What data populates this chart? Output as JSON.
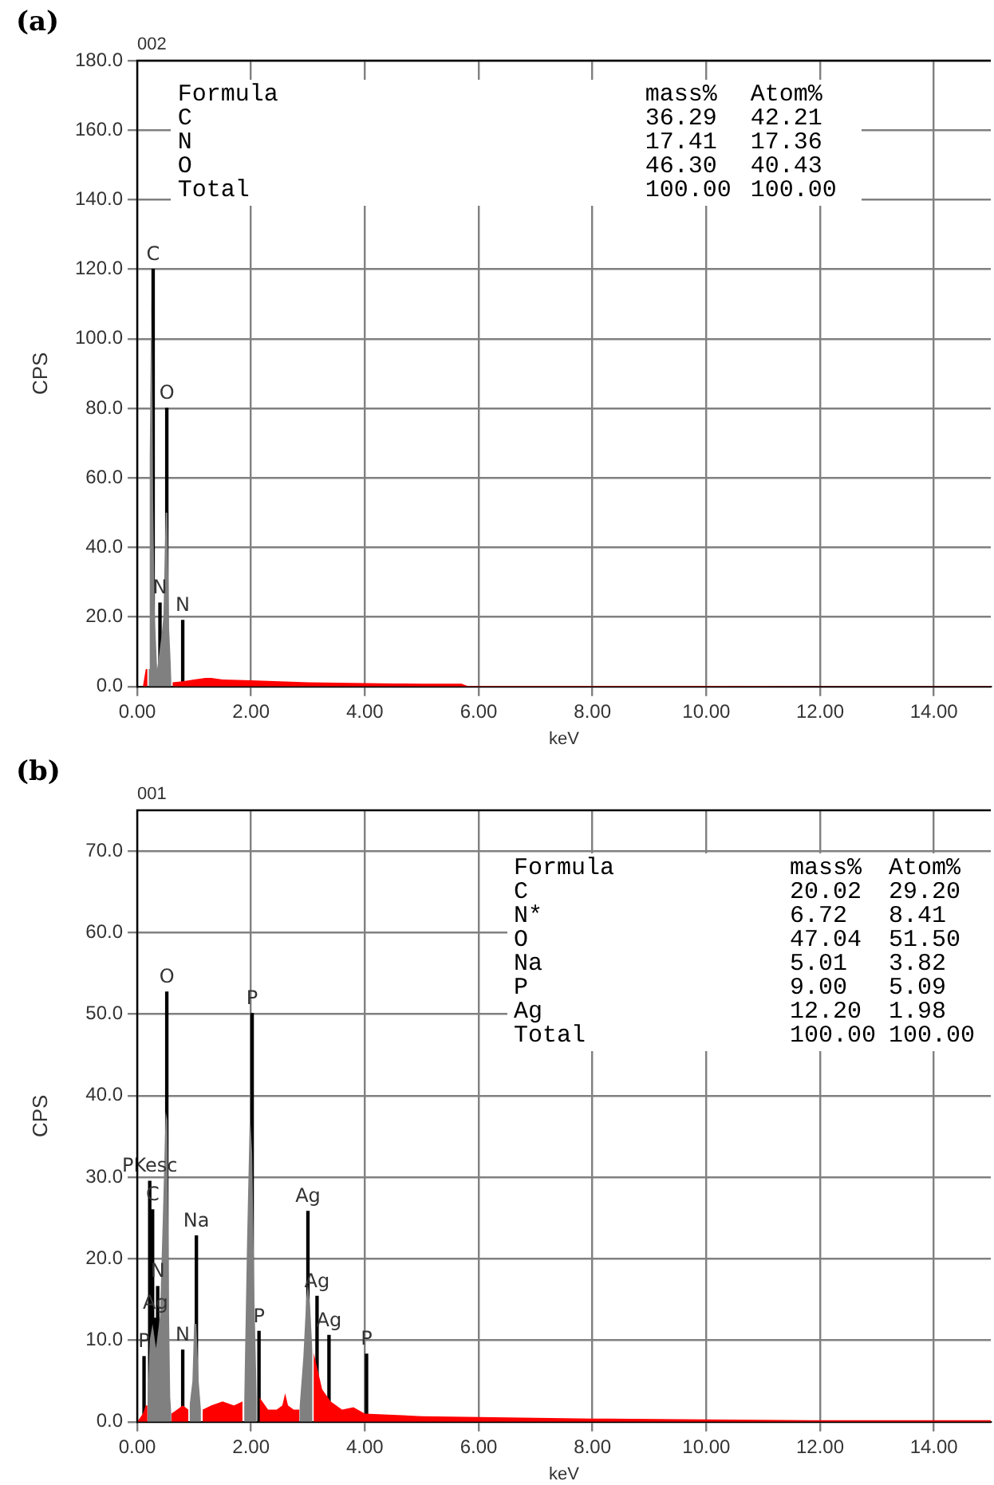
{
  "chart_data": [
    {
      "type": "area",
      "title": "(a)",
      "subtitle": "002",
      "xlabel": "keV",
      "ylabel": "CPS",
      "xlim": [
        0,
        15
      ],
      "ylim": [
        0,
        180
      ],
      "xticks": [
        {
          "value": 0,
          "label": "0.00"
        },
        {
          "value": 2,
          "label": "2.00"
        },
        {
          "value": 4,
          "label": "4.00"
        },
        {
          "value": 6,
          "label": "6.00"
        },
        {
          "value": 8,
          "label": "8.00"
        },
        {
          "value": 10,
          "label": "10.00"
        },
        {
          "value": 12,
          "label": "12.00"
        },
        {
          "value": 14,
          "label": "14.00"
        }
      ],
      "yticks": [
        {
          "value": 0,
          "label": "0.0"
        },
        {
          "value": 20,
          "label": "20.0"
        },
        {
          "value": 40,
          "label": "40.0"
        },
        {
          "value": 60,
          "label": "60.0"
        },
        {
          "value": 80,
          "label": "80.0"
        },
        {
          "value": 100,
          "label": "100.0"
        },
        {
          "value": 120,
          "label": "120.0"
        },
        {
          "value": 140,
          "label": "140.0"
        },
        {
          "value": 160,
          "label": "160.0"
        },
        {
          "value": 180,
          "label": "180.0"
        }
      ],
      "grid": true,
      "legend": false,
      "series": [
        {
          "color": "#ff0000",
          "x": [
            0,
            0.1,
            0.15,
            0.18,
            0.4,
            0.62,
            0.8,
            1.0,
            1.2,
            1.3,
            1.5,
            2.0,
            2.5,
            3.0,
            3.5,
            4.0,
            4.5,
            5.0,
            5.7,
            5.8,
            7,
            8,
            10,
            12,
            15
          ],
          "values": [
            0,
            0,
            5,
            5,
            null,
            1.2,
            1.5,
            2,
            2.5,
            2.5,
            2,
            1.8,
            1.5,
            1.2,
            1.1,
            1,
            0.9,
            0.8,
            0.8,
            0.2,
            0.2,
            0.2,
            0.2,
            0.1,
            0.1
          ]
        },
        {
          "color": "#808080",
          "x": [
            0.2,
            0.22,
            0.24,
            0.25,
            0.27,
            0.28,
            0.31,
            0.35,
            0.39,
            0.43,
            0.46,
            0.5,
            0.53,
            0.56,
            0.58,
            0.6
          ],
          "values": [
            5,
            66,
            100,
            112,
            80,
            53,
            20,
            5,
            10,
            15,
            20,
            50,
            50,
            17,
            10,
            2
          ]
        },
        {
          "type": "bar",
          "color": "#000000",
          "x": [
            0.28,
            0.4,
            0.52,
            0.8
          ],
          "values": [
            120,
            24,
            80,
            19
          ],
          "value_labels": [
            "C",
            "N",
            "O",
            "N"
          ]
        }
      ],
      "annotations": [
        "Formula mass% Atom%",
        "C 36.29 42.21",
        "N 17.41 17.36",
        "O 46.30 40.43",
        "Total 100.00 100.00"
      ]
    },
    {
      "type": "area",
      "title": "(b)",
      "subtitle": "001",
      "xlabel": "keV",
      "ylabel": "CPS",
      "xlim": [
        0,
        15
      ],
      "ylim": [
        0,
        75
      ],
      "xticks": [
        {
          "value": 0,
          "label": "0.00"
        },
        {
          "value": 2,
          "label": "2.00"
        },
        {
          "value": 4,
          "label": "4.00"
        },
        {
          "value": 6,
          "label": "6.00"
        },
        {
          "value": 8,
          "label": "8.00"
        },
        {
          "value": 10,
          "label": "10.00"
        },
        {
          "value": 12,
          "label": "12.00"
        },
        {
          "value": 14,
          "label": "14.00"
        }
      ],
      "yticks": [
        {
          "value": 0,
          "label": "0.0"
        },
        {
          "value": 10,
          "label": "10.0"
        },
        {
          "value": 20,
          "label": "20.0"
        },
        {
          "value": 30,
          "label": "30.0"
        },
        {
          "value": 40,
          "label": "40.0"
        },
        {
          "value": 50,
          "label": "50.0"
        },
        {
          "value": 60,
          "label": "60.0"
        },
        {
          "value": 70,
          "label": "70.0"
        }
      ],
      "grid": true,
      "legend": false,
      "series": [
        {
          "color": "#ff0000",
          "x": [
            0,
            0.1,
            0.15,
            0.18,
            0.4,
            0.6,
            0.7,
            0.8,
            0.9,
            1.02,
            1.15,
            1.3,
            1.5,
            1.7,
            1.85,
            2.0,
            2.15,
            2.3,
            2.45,
            2.55,
            2.6,
            2.65,
            2.75,
            2.85,
            2.97,
            3.1,
            3.15,
            3.25,
            3.4,
            3.6,
            3.8,
            4.0,
            5,
            6,
            8,
            10,
            12,
            15
          ],
          "values": [
            0,
            1,
            2,
            2,
            null,
            1,
            1.5,
            2,
            1.5,
            null,
            1.5,
            2,
            2.5,
            2,
            2.5,
            null,
            3,
            1.5,
            1.5,
            2,
            3.5,
            2,
            1.5,
            1.5,
            null,
            8.5,
            7,
            4,
            2.5,
            1.5,
            1.8,
            1,
            0.7,
            0.6,
            0.4,
            0.3,
            0.2,
            0.2
          ]
        },
        {
          "color": "#808080",
          "x": [
            0.18,
            0.22,
            0.27,
            0.33,
            0.4,
            0.45,
            0.5,
            0.53,
            0.56,
            0.58,
            0.6
          ],
          "values": [
            2,
            10,
            12,
            9,
            13,
            25,
            38,
            37,
            13,
            3,
            1
          ]
        },
        {
          "color": "#808080",
          "x": [
            0.92,
            0.97,
            1.0,
            1.04,
            1.08,
            1.12
          ],
          "values": [
            2,
            5,
            12,
            12,
            5,
            1.5
          ]
        },
        {
          "color": "#808080",
          "x": [
            1.88,
            1.93,
            1.98,
            2.02,
            2.06,
            2.1
          ],
          "values": [
            2.5,
            22,
            38,
            33,
            15,
            3
          ]
        },
        {
          "color": "#808080",
          "x": [
            2.85,
            2.92,
            2.97,
            3.0,
            3.04,
            3.08
          ],
          "values": [
            1.5,
            8,
            15,
            17,
            14,
            8.5
          ]
        },
        {
          "type": "bar",
          "color": "#000000",
          "x": [
            0.12,
            0.22,
            0.27,
            0.32,
            0.36,
            0.52,
            0.8,
            1.04,
            2.02,
            2.14,
            3.0,
            3.16,
            3.37,
            4.03
          ],
          "values": [
            8,
            29.5,
            26,
            12.7,
            16.6,
            52.7,
            8.8,
            22.8,
            50.1,
            11.1,
            25.8,
            15.4,
            10.6,
            8.3
          ],
          "value_labels": [
            "P",
            "PKesc",
            "C",
            "Ag",
            "N",
            "O",
            "N",
            "Na",
            "P",
            "P",
            "Ag",
            "Ag",
            "Ag",
            "P"
          ]
        }
      ],
      "annotations": [
        "Formula mass% Atom%",
        "C 20.02 29.20",
        "N* 6.72 8.41",
        "O 47.04 51.50",
        "Na 5.01 3.82",
        "P 9.00 5.09",
        "Ag 12.20 1.98",
        "Total 100.00 100.00"
      ]
    }
  ]
}
